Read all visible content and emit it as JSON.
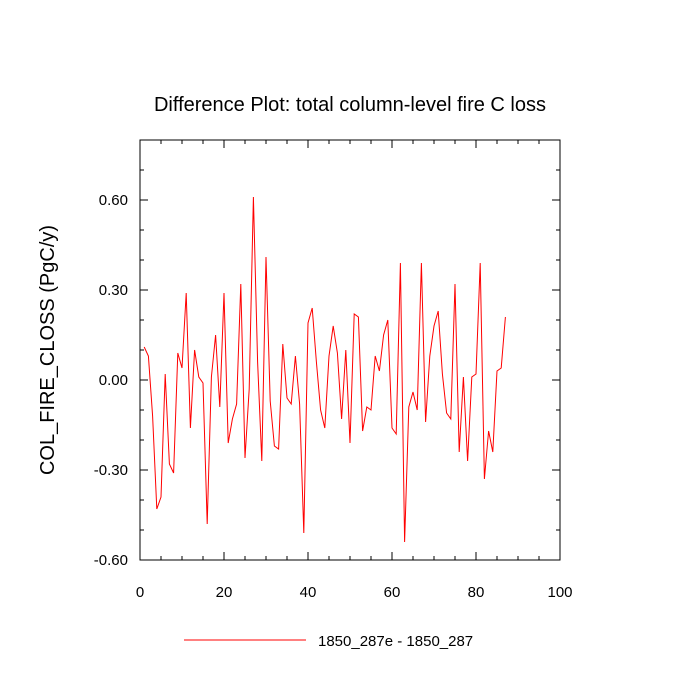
{
  "chart_data": {
    "type": "line",
    "title": "Difference Plot: total column-level fire C loss",
    "xlabel": "",
    "ylabel": "COL_FIRE_CLOSS  (PgC/y)",
    "xlim": [
      0,
      100
    ],
    "ylim": [
      -0.6,
      0.8
    ],
    "x_ticks": [
      0,
      20,
      40,
      60,
      80,
      100
    ],
    "x_tick_labels": [
      "0",
      "20",
      "40",
      "60",
      "80",
      "100"
    ],
    "y_ticks": [
      -0.6,
      -0.3,
      0.0,
      0.3,
      0.6
    ],
    "y_tick_labels": [
      "-0.60",
      "-0.30",
      "0.00",
      "0.30",
      "0.60"
    ],
    "grid": false,
    "legend_position": "bottom-center",
    "series": [
      {
        "name": "1850_287e - 1850_287",
        "color": "#ff0000",
        "x": [
          1,
          2,
          3,
          4,
          5,
          6,
          7,
          8,
          9,
          10,
          11,
          12,
          13,
          14,
          15,
          16,
          17,
          18,
          19,
          20,
          21,
          22,
          23,
          24,
          25,
          26,
          27,
          28,
          29,
          30,
          31,
          32,
          33,
          34,
          35,
          36,
          37,
          38,
          39,
          40,
          41,
          42,
          43,
          44,
          45,
          46,
          47,
          48,
          49,
          50,
          51,
          52,
          53,
          54,
          55,
          56,
          57,
          58,
          59,
          60,
          61,
          62,
          63,
          64,
          65,
          66,
          67,
          68,
          69,
          70,
          71,
          72,
          73,
          74,
          75,
          76,
          77,
          78,
          79,
          80,
          81,
          82,
          83,
          84,
          85,
          86,
          87
        ],
        "y": [
          0.11,
          0.08,
          -0.12,
          -0.43,
          -0.39,
          0.02,
          -0.28,
          -0.31,
          0.09,
          0.04,
          0.29,
          -0.16,
          0.1,
          0.01,
          -0.01,
          -0.48,
          0.01,
          0.15,
          -0.09,
          0.29,
          -0.21,
          -0.13,
          -0.08,
          0.32,
          -0.26,
          -0.03,
          0.61,
          0.06,
          -0.27,
          0.41,
          -0.07,
          -0.22,
          -0.23,
          0.12,
          -0.06,
          -0.08,
          0.08,
          -0.08,
          -0.51,
          0.19,
          0.24,
          0.06,
          -0.1,
          -0.16,
          0.08,
          0.18,
          0.09,
          -0.13,
          0.1,
          -0.21,
          0.22,
          0.21,
          -0.17,
          -0.09,
          -0.1,
          0.08,
          0.03,
          0.15,
          0.2,
          -0.16,
          -0.18,
          0.39,
          -0.54,
          -0.09,
          -0.04,
          -0.1,
          0.39,
          -0.14,
          0.08,
          0.18,
          0.23,
          0.02,
          -0.11,
          -0.13,
          0.32,
          -0.24,
          0.01,
          -0.27,
          0.01,
          0.02,
          0.39,
          -0.33,
          -0.17,
          -0.24,
          0.03,
          0.04,
          0.21
        ]
      }
    ]
  }
}
